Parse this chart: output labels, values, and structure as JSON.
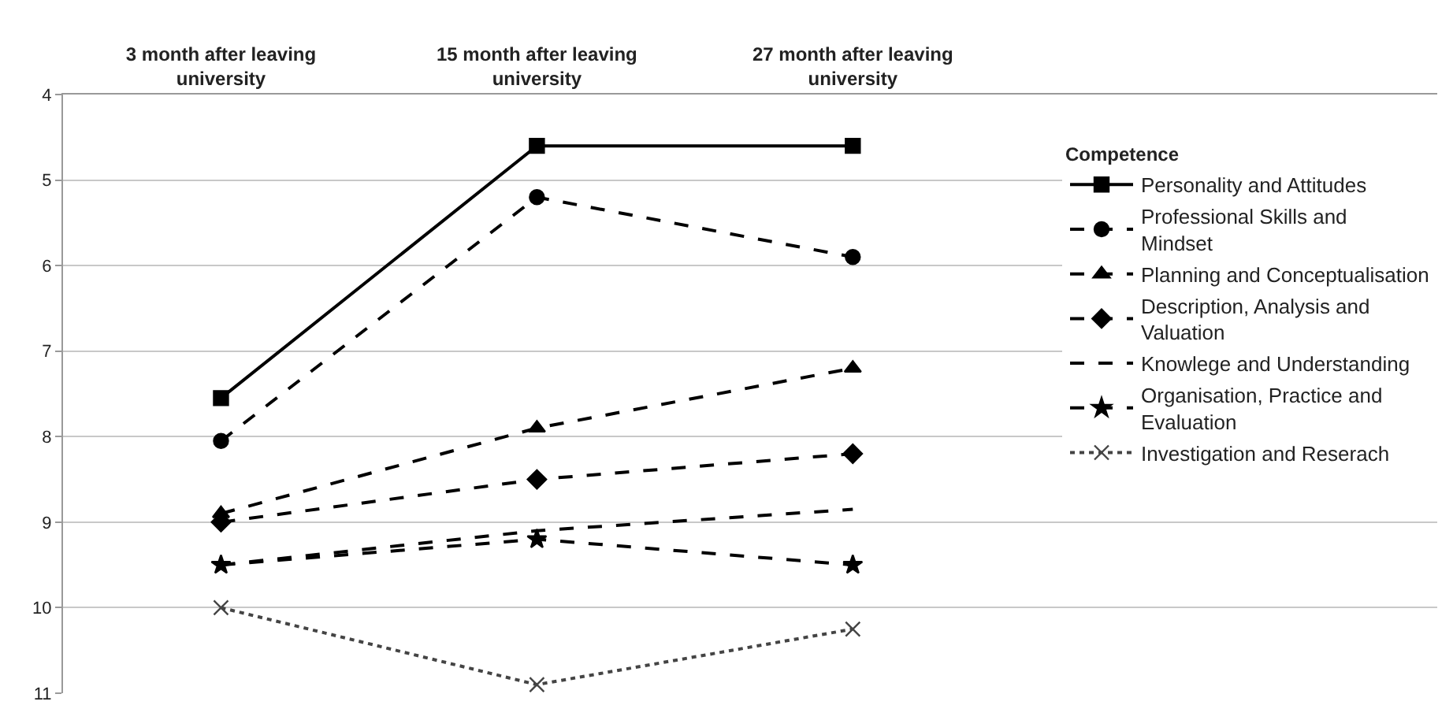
{
  "chart_data": {
    "type": "line",
    "categories": [
      "3 month after leaving university",
      "15 month after leaving university",
      "27 month after leaving university"
    ],
    "ylim": [
      11,
      4
    ],
    "yticks": [
      4,
      5,
      6,
      7,
      8,
      9,
      10,
      11
    ],
    "grid": "y",
    "legend": "right",
    "legend_title": "Competence",
    "series": [
      {
        "name": "Personality and Attitudes",
        "color": "#000000",
        "values": [
          7.55,
          4.6,
          4.6
        ],
        "marker": "square",
        "line_style": "solid"
      },
      {
        "name": "Professional Skills and Mindset",
        "color": "#000000",
        "values": [
          8.05,
          5.2,
          5.9
        ],
        "marker": "circle",
        "line_style": "dashed"
      },
      {
        "name": "Planning and Conceptualisation",
        "color": "#000000",
        "values": [
          8.9,
          7.9,
          7.2
        ],
        "marker": "triangle",
        "line_style": "dashed"
      },
      {
        "name": "Description, Analysis and Valuation",
        "color": "#000000",
        "values": [
          9.0,
          8.5,
          8.2
        ],
        "marker": "diamond",
        "line_style": "dashed"
      },
      {
        "name": "Knowlege and Understanding",
        "color": "#000000",
        "values": [
          9.5,
          9.1,
          8.85
        ],
        "marker": "none",
        "line_style": "dashed"
      },
      {
        "name": "Organisation, Practice and Evaluation",
        "color": "#000000",
        "values": [
          9.5,
          9.2,
          9.5
        ],
        "marker": "star",
        "line_style": "dashed"
      },
      {
        "name": "Investigation and Reserach",
        "color": "#444444",
        "values": [
          10.0,
          10.9,
          10.25
        ],
        "marker": "cross",
        "line_style": "dotted"
      }
    ]
  }
}
